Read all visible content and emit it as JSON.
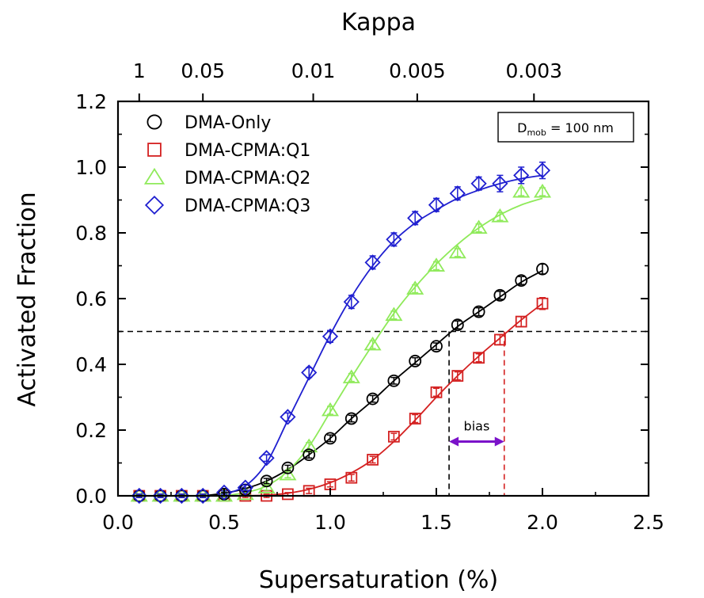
{
  "chart_data": {
    "type": "scatter",
    "xlabel": "Supersaturation (%)",
    "ylabel": "Activated Fraction",
    "top_axis_label": "Kappa",
    "xlim": [
      0.0,
      2.5
    ],
    "ylim": [
      0.0,
      1.2
    ],
    "x_ticks": [
      "0.0",
      "0.5",
      "1.0",
      "1.5",
      "2.0",
      "2.5"
    ],
    "y_ticks": [
      "0.0",
      "0.2",
      "0.4",
      "0.6",
      "0.8",
      "1.0",
      "1.2"
    ],
    "top_ticks": [
      {
        "label": "1",
        "x": 0.1
      },
      {
        "label": "0.05",
        "x": 0.4
      },
      {
        "label": "0.01",
        "x": 0.92
      },
      {
        "label": "0.005",
        "x": 1.41
      },
      {
        "label": "0.003",
        "x": 1.96
      }
    ],
    "legend_position": "top-left",
    "inset": {
      "main": "D",
      "sub": "mob",
      "rest": " = 100 nm"
    },
    "reference_line_y": 0.5,
    "bias": {
      "label": "bias",
      "x_start": 1.56,
      "x_end": 1.82,
      "y": 0.165,
      "color": "#7b12c9"
    },
    "series": [
      {
        "name": "DMA-Only",
        "marker": "circle",
        "color": "#000000",
        "x": [
          0.1,
          0.2,
          0.3,
          0.4,
          0.5,
          0.6,
          0.7,
          0.8,
          0.9,
          1.0,
          1.1,
          1.2,
          1.3,
          1.4,
          1.5,
          1.6,
          1.7,
          1.8,
          1.9,
          2.0
        ],
        "y": [
          0.0,
          0.0,
          0.0,
          0.0,
          0.005,
          0.018,
          0.045,
          0.085,
          0.125,
          0.175,
          0.235,
          0.295,
          0.35,
          0.41,
          0.455,
          0.52,
          0.56,
          0.61,
          0.655,
          0.69
        ],
        "err": [
          0.005,
          0.005,
          0.005,
          0.005,
          0.005,
          0.005,
          0.008,
          0.008,
          0.01,
          0.01,
          0.01,
          0.01,
          0.01,
          0.01,
          0.01,
          0.012,
          0.012,
          0.012,
          0.012,
          0.015
        ],
        "fit_x": [
          0.4,
          0.5,
          0.6,
          0.7,
          0.8,
          0.9,
          1.0,
          1.1,
          1.2,
          1.3,
          1.4,
          1.5,
          1.6,
          1.7,
          1.8,
          1.9,
          2.0
        ],
        "fit_y": [
          0.0,
          0.008,
          0.022,
          0.045,
          0.08,
          0.125,
          0.175,
          0.235,
          0.29,
          0.35,
          0.405,
          0.46,
          0.515,
          0.56,
          0.605,
          0.65,
          0.685
        ]
      },
      {
        "name": "DMA-CPMA:Q1",
        "marker": "square",
        "color": "#d42020",
        "x": [
          0.1,
          0.2,
          0.3,
          0.4,
          0.5,
          0.6,
          0.7,
          0.8,
          0.9,
          1.0,
          1.1,
          1.2,
          1.3,
          1.4,
          1.5,
          1.6,
          1.7,
          1.8,
          1.9,
          2.0
        ],
        "y": [
          0.0,
          0.0,
          0.0,
          0.0,
          0.0,
          0.0,
          0.0,
          0.005,
          0.015,
          0.035,
          0.055,
          0.11,
          0.18,
          0.235,
          0.315,
          0.365,
          0.42,
          0.475,
          0.53,
          0.585
        ],
        "err": [
          0.005,
          0.005,
          0.005,
          0.005,
          0.005,
          0.005,
          0.005,
          0.005,
          0.008,
          0.008,
          0.01,
          0.01,
          0.01,
          0.012,
          0.012,
          0.012,
          0.012,
          0.015,
          0.015,
          0.018
        ],
        "fit_x": [
          0.6,
          0.7,
          0.8,
          0.9,
          1.0,
          1.1,
          1.2,
          1.3,
          1.4,
          1.5,
          1.6,
          1.7,
          1.8,
          1.9,
          2.0
        ],
        "fit_y": [
          0.0,
          0.002,
          0.008,
          0.02,
          0.04,
          0.07,
          0.11,
          0.165,
          0.23,
          0.3,
          0.365,
          0.425,
          0.48,
          0.535,
          0.585
        ]
      },
      {
        "name": "DMA-CPMA:Q2",
        "marker": "triangle",
        "color": "#8fea5a",
        "x": [
          0.1,
          0.2,
          0.3,
          0.4,
          0.5,
          0.6,
          0.7,
          0.8,
          0.9,
          1.0,
          1.1,
          1.2,
          1.3,
          1.4,
          1.5,
          1.6,
          1.7,
          1.8,
          1.9,
          2.0
        ],
        "y": [
          0.0,
          0.0,
          0.0,
          0.0,
          0.0,
          0.005,
          0.025,
          0.065,
          0.15,
          0.26,
          0.36,
          0.46,
          0.55,
          0.63,
          0.7,
          0.74,
          0.815,
          0.85,
          0.925,
          0.925
        ],
        "err": [
          0.005,
          0.005,
          0.005,
          0.005,
          0.005,
          0.005,
          0.008,
          0.01,
          0.012,
          0.012,
          0.012,
          0.012,
          0.012,
          0.012,
          0.012,
          0.012,
          0.012,
          0.012,
          0.012,
          0.012
        ],
        "fit_x": [
          0.5,
          0.6,
          0.7,
          0.8,
          0.9,
          1.0,
          1.1,
          1.2,
          1.3,
          1.4,
          1.5,
          1.6,
          1.7,
          1.8,
          1.9,
          2.0
        ],
        "fit_y": [
          0.0,
          0.01,
          0.03,
          0.075,
          0.15,
          0.255,
          0.36,
          0.46,
          0.555,
          0.635,
          0.705,
          0.765,
          0.815,
          0.855,
          0.885,
          0.905
        ]
      },
      {
        "name": "DMA-CPMA:Q3",
        "marker": "diamond",
        "color": "#1f1fd0",
        "x": [
          0.1,
          0.2,
          0.3,
          0.4,
          0.5,
          0.6,
          0.7,
          0.8,
          0.9,
          1.0,
          1.1,
          1.2,
          1.3,
          1.4,
          1.5,
          1.6,
          1.7,
          1.8,
          1.9,
          2.0
        ],
        "y": [
          0.0,
          0.0,
          0.0,
          0.0,
          0.01,
          0.025,
          0.115,
          0.24,
          0.375,
          0.485,
          0.59,
          0.71,
          0.78,
          0.845,
          0.885,
          0.92,
          0.95,
          0.95,
          0.975,
          0.99
        ],
        "err": [
          0.005,
          0.005,
          0.005,
          0.005,
          0.005,
          0.008,
          0.01,
          0.012,
          0.015,
          0.018,
          0.02,
          0.02,
          0.02,
          0.02,
          0.02,
          0.02,
          0.02,
          0.025,
          0.025,
          0.025
        ],
        "fit_x": [
          0.5,
          0.6,
          0.7,
          0.8,
          0.9,
          1.0,
          1.1,
          1.2,
          1.3,
          1.4,
          1.5,
          1.6,
          1.7,
          1.8,
          1.9,
          2.0
        ],
        "fit_y": [
          0.005,
          0.03,
          0.1,
          0.23,
          0.36,
          0.49,
          0.605,
          0.7,
          0.775,
          0.83,
          0.87,
          0.905,
          0.93,
          0.95,
          0.965,
          0.975
        ]
      }
    ]
  }
}
